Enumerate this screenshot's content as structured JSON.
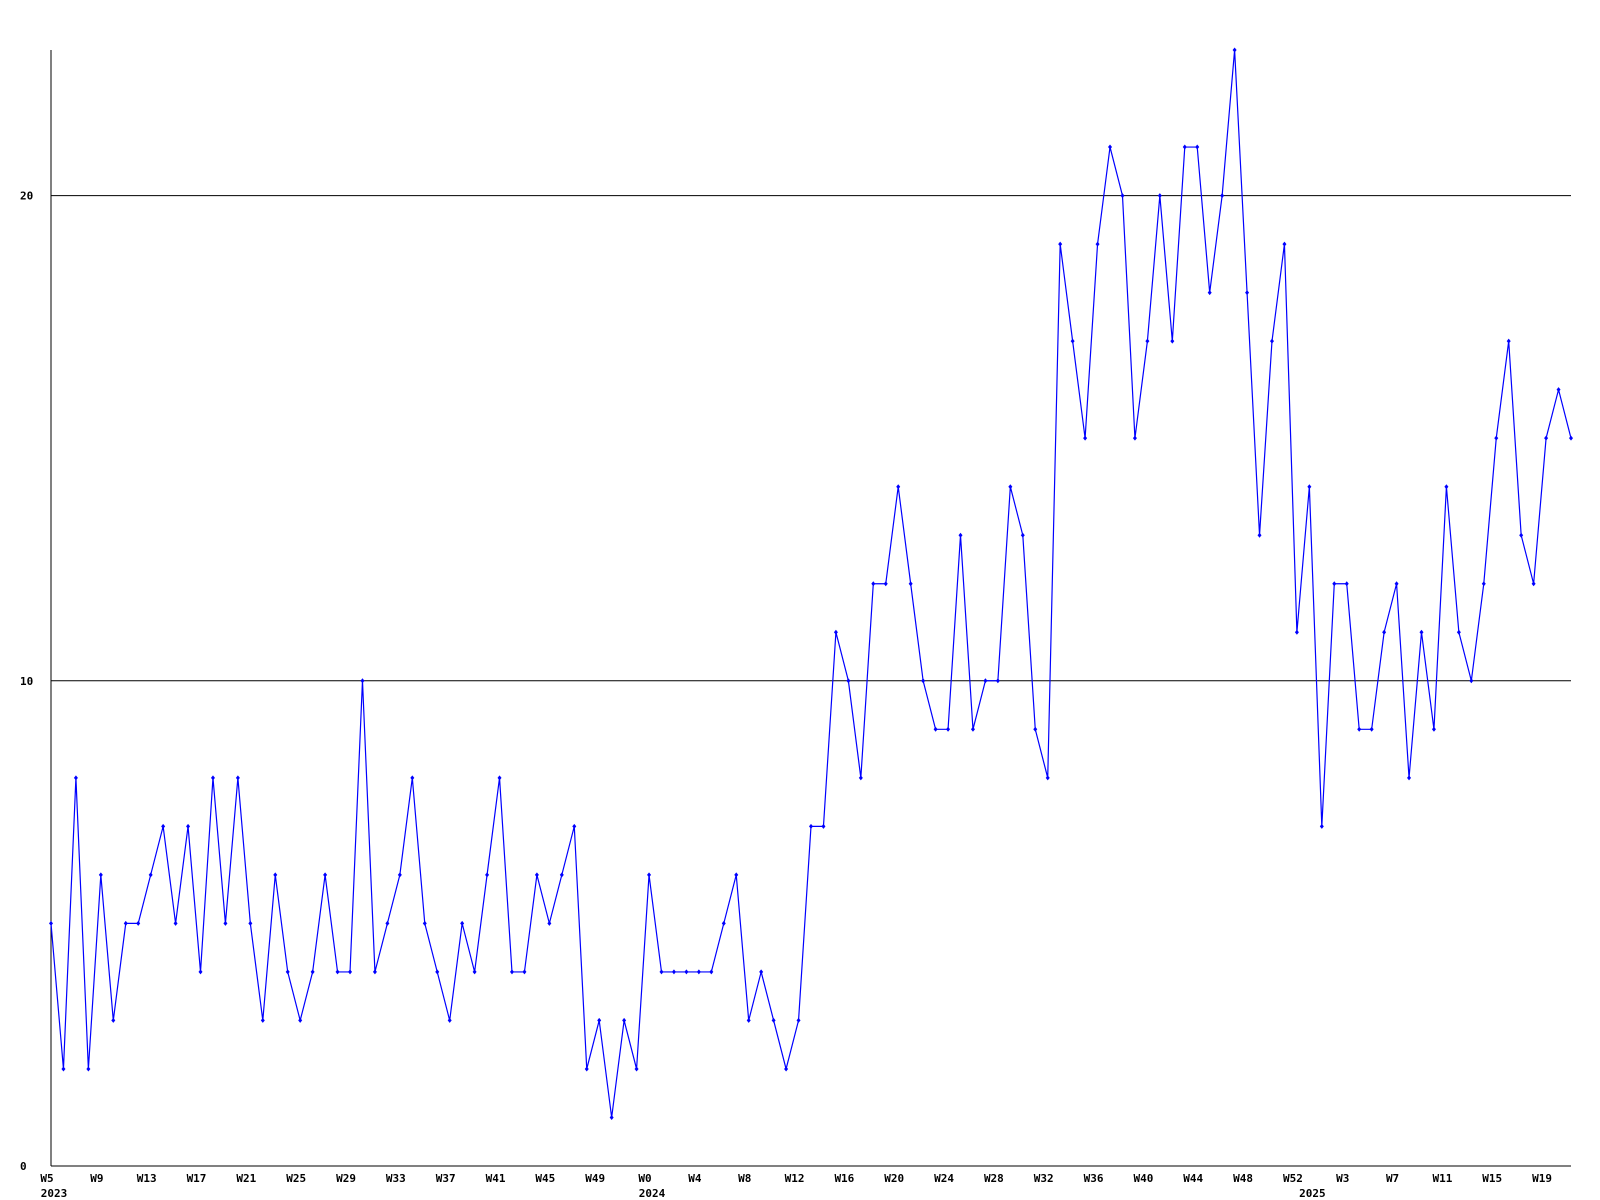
{
  "chart_data": {
    "type": "line",
    "categories": [
      "W5",
      null,
      null,
      null,
      "W9",
      null,
      null,
      null,
      "W13",
      null,
      null,
      null,
      "W17",
      null,
      null,
      null,
      "W21",
      null,
      null,
      null,
      "W25",
      null,
      null,
      null,
      "W29",
      null,
      null,
      null,
      "W33",
      null,
      null,
      null,
      "W37",
      null,
      null,
      null,
      "W41",
      null,
      null,
      null,
      "W45",
      null,
      null,
      null,
      "W49",
      null,
      null,
      null,
      "W0",
      null,
      null,
      null,
      "W4",
      null,
      null,
      null,
      "W8",
      null,
      null,
      null,
      "W12",
      null,
      null,
      null,
      "W16",
      null,
      null,
      null,
      "W20",
      null,
      null,
      null,
      "W24",
      null,
      null,
      null,
      "W28",
      null,
      null,
      null,
      "W32",
      null,
      null,
      null,
      "W36",
      null,
      null,
      null,
      "W40",
      null,
      null,
      null,
      "W44",
      null,
      null,
      null,
      "W48",
      null,
      null,
      null,
      "W52",
      null,
      null,
      null,
      "W3",
      null,
      null,
      null,
      "W7",
      null,
      null,
      null,
      "W11",
      null,
      null,
      null,
      "W15",
      null,
      null,
      null,
      "W19",
      null,
      null
    ],
    "category_years": [
      "2023",
      null,
      null,
      null,
      null,
      null,
      null,
      null,
      null,
      null,
      null,
      null,
      null,
      null,
      null,
      null,
      null,
      null,
      null,
      null,
      null,
      null,
      null,
      null,
      null,
      null,
      null,
      null,
      null,
      null,
      null,
      null,
      null,
      null,
      null,
      null,
      null,
      null,
      null,
      null,
      null,
      null,
      null,
      null,
      null,
      null,
      null,
      null,
      "2024",
      null,
      null,
      null,
      null,
      null,
      null,
      null,
      null,
      null,
      null,
      null,
      null,
      null,
      null,
      null,
      null,
      null,
      null,
      null,
      null,
      null,
      null,
      null,
      null,
      null,
      null,
      null,
      null,
      null,
      null,
      null,
      null,
      null,
      null,
      null,
      null,
      null,
      null,
      null,
      null,
      null,
      null,
      null,
      null,
      null,
      null,
      null,
      null,
      null,
      null,
      null,
      null,
      "2025",
      null,
      null,
      null,
      null,
      null,
      null,
      null,
      null,
      null,
      null,
      null,
      null,
      null,
      null,
      null,
      null,
      null,
      null,
      null,
      null,
      null
    ],
    "series": [
      {
        "color": "#0000ff",
        "values": [
          5,
          2,
          8,
          2,
          6,
          3,
          5,
          5,
          6,
          7,
          5,
          7,
          4,
          8,
          5,
          8,
          5,
          3,
          6,
          4,
          3,
          4,
          6,
          4,
          4,
          10,
          4,
          5,
          6,
          8,
          5,
          4,
          3,
          5,
          4,
          6,
          8,
          4,
          4,
          6,
          5,
          6,
          7,
          2,
          3,
          1,
          3,
          2,
          6,
          4,
          4,
          4,
          4,
          4,
          5,
          6,
          3,
          4,
          3,
          2,
          3,
          7,
          7,
          11,
          10,
          8,
          12,
          12,
          14,
          12,
          10,
          9,
          9,
          13,
          9,
          10,
          10,
          14,
          13,
          9,
          8,
          19,
          17,
          15,
          19,
          21,
          20,
          15,
          17,
          20,
          17,
          21,
          21,
          18,
          20,
          23,
          18,
          13,
          17,
          19,
          11,
          14,
          7,
          12,
          12,
          9,
          9,
          11,
          12,
          8,
          11,
          9,
          14,
          11,
          10,
          12,
          15,
          17,
          13,
          12,
          15,
          16,
          15
        ]
      }
    ],
    "ylim": [
      0,
      23
    ],
    "yticks": [
      0,
      10,
      20
    ],
    "grid": true
  }
}
